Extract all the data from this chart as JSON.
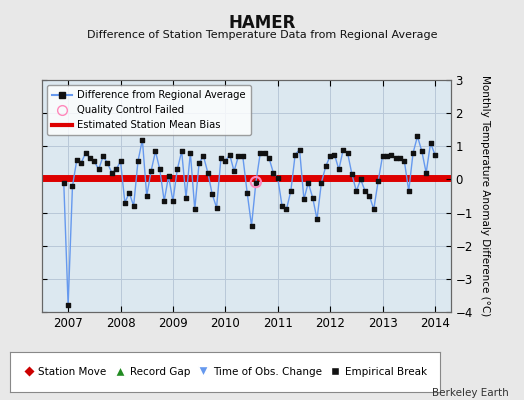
{
  "title": "HAMER",
  "subtitle": "Difference of Station Temperature Data from Regional Average",
  "ylabel_right": "Monthly Temperature Anomaly Difference (°C)",
  "credit": "Berkeley Earth",
  "background_color": "#e8e8e8",
  "plot_bg_color": "#dce8f0",
  "grid_color": "#b8c8d8",
  "bias_value": 0.05,
  "bias_color": "#dd0000",
  "bias_linewidth": 5,
  "line_color": "#6699ee",
  "marker_color": "#111111",
  "qc_fail_color": "#ff88bb",
  "ylim": [
    -4,
    3
  ],
  "xlim_start": 2006.5,
  "xlim_end": 2014.3,
  "xticks": [
    2007,
    2008,
    2009,
    2010,
    2011,
    2012,
    2013,
    2014
  ],
  "yticks": [
    -4,
    -3,
    -2,
    -1,
    0,
    1,
    2,
    3
  ],
  "time_values": [
    2006.917,
    2007.0,
    2007.083,
    2007.167,
    2007.25,
    2007.333,
    2007.417,
    2007.5,
    2007.583,
    2007.667,
    2007.75,
    2007.833,
    2007.917,
    2008.0,
    2008.083,
    2008.167,
    2008.25,
    2008.333,
    2008.417,
    2008.5,
    2008.583,
    2008.667,
    2008.75,
    2008.833,
    2008.917,
    2009.0,
    2009.083,
    2009.167,
    2009.25,
    2009.333,
    2009.417,
    2009.5,
    2009.583,
    2009.667,
    2009.75,
    2009.833,
    2009.917,
    2010.0,
    2010.083,
    2010.167,
    2010.25,
    2010.333,
    2010.417,
    2010.5,
    2010.583,
    2010.667,
    2010.75,
    2010.833,
    2010.917,
    2011.0,
    2011.083,
    2011.167,
    2011.25,
    2011.333,
    2011.417,
    2011.5,
    2011.583,
    2011.667,
    2011.75,
    2011.833,
    2011.917,
    2012.0,
    2012.083,
    2012.167,
    2012.25,
    2012.333,
    2012.417,
    2012.5,
    2012.583,
    2012.667,
    2012.75,
    2012.833,
    2012.917,
    2013.0,
    2013.083,
    2013.167,
    2013.25,
    2013.333,
    2013.417,
    2013.5,
    2013.583,
    2013.667,
    2013.75,
    2013.833,
    2013.917,
    2014.0
  ],
  "data_values": [
    -0.1,
    -3.8,
    -0.2,
    0.6,
    0.5,
    0.8,
    0.65,
    0.55,
    0.3,
    0.7,
    0.5,
    0.2,
    0.3,
    0.55,
    -0.7,
    -0.4,
    -0.8,
    0.55,
    1.2,
    -0.5,
    0.25,
    0.85,
    0.3,
    -0.65,
    0.1,
    -0.65,
    0.3,
    0.85,
    -0.55,
    0.8,
    -0.9,
    0.5,
    0.7,
    0.2,
    -0.45,
    -0.85,
    0.65,
    0.55,
    0.75,
    0.25,
    0.7,
    0.7,
    -0.4,
    -1.4,
    -0.1,
    0.8,
    0.8,
    0.65,
    0.2,
    0.05,
    -0.8,
    -0.9,
    -0.35,
    0.75,
    0.9,
    -0.6,
    -0.1,
    -0.55,
    -1.2,
    -0.1,
    0.4,
    0.7,
    0.75,
    0.3,
    0.9,
    0.8,
    0.15,
    -0.35,
    0.0,
    -0.35,
    -0.5,
    -0.9,
    -0.05,
    0.7,
    0.7,
    0.75,
    0.65,
    0.65,
    0.55,
    -0.35,
    0.8,
    1.3,
    0.85,
    0.2,
    1.1,
    0.75
  ],
  "qc_fail_times": [
    2010.583
  ],
  "qc_fail_values": [
    -0.08
  ]
}
